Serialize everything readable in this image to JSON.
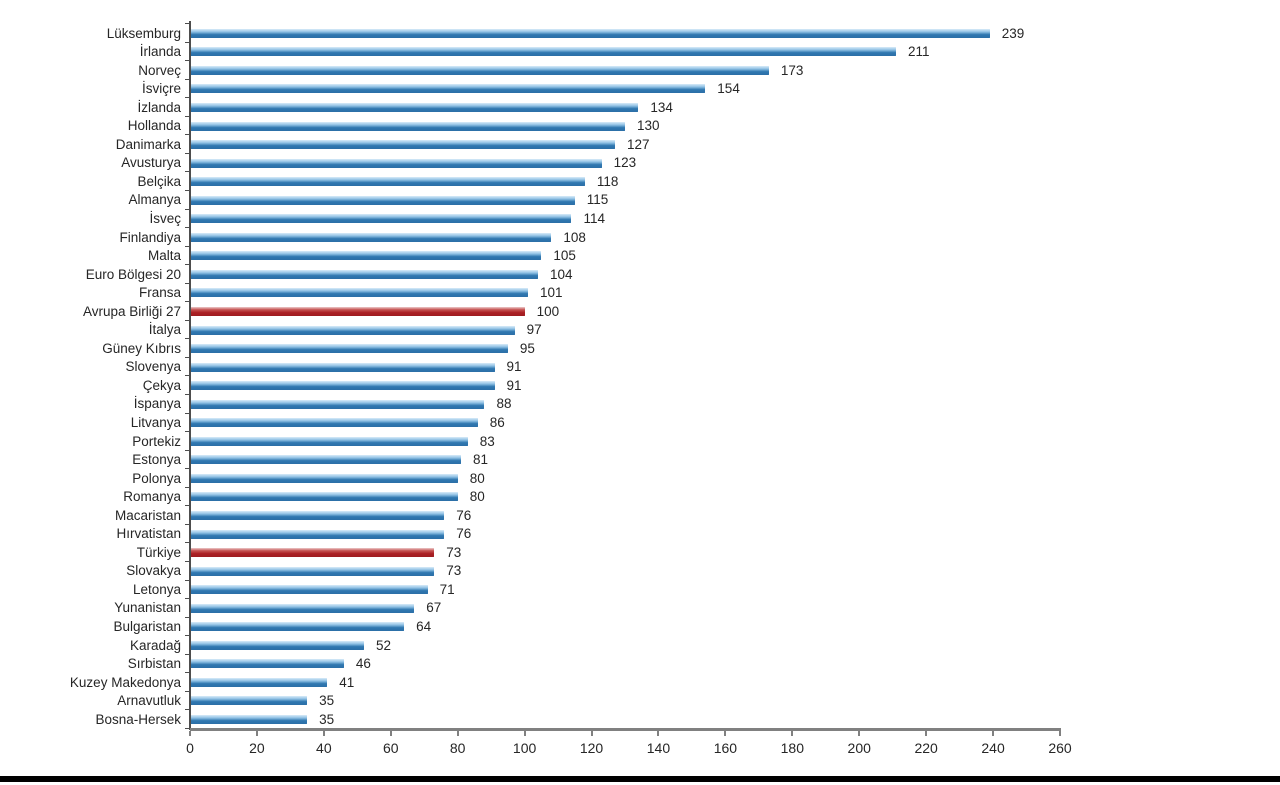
{
  "page": {
    "background_color": "#ffffff",
    "footer_divider_color": "#000000"
  },
  "chart_data": {
    "type": "bar",
    "orientation": "horizontal",
    "title": "",
    "xlabel": "",
    "ylabel": "",
    "xlim": [
      0,
      260
    ],
    "x_ticks": [
      0,
      20,
      40,
      60,
      80,
      100,
      120,
      140,
      160,
      180,
      200,
      220,
      240,
      260
    ],
    "grid": false,
    "legend": false,
    "value_labels_shown": true,
    "bar_color": "#2e74ae",
    "highlight_color": "#a81e22",
    "highlighted_categories": [
      "Avrupa Birliği 27",
      "Türkiye"
    ],
    "categories": [
      "Lüksemburg",
      "İrlanda",
      "Norveç",
      "İsviçre",
      "İzlanda",
      "Hollanda",
      "Danimarka",
      "Avusturya",
      "Belçika",
      "Almanya",
      "İsveç",
      "Finlandiya",
      "Malta",
      "Euro Bölgesi 20",
      "Fransa",
      "Avrupa Birliği 27",
      "İtalya",
      "Güney Kıbrıs",
      "Slovenya",
      "Çekya",
      "İspanya",
      "Litvanya",
      "Portekiz",
      "Estonya",
      "Polonya",
      "Romanya",
      "Macaristan",
      "Hırvatistan",
      "Türkiye",
      "Slovakya",
      "Letonya",
      "Yunanistan",
      "Bulgaristan",
      "Karadağ",
      "Sırbistan",
      "Kuzey Makedonya",
      "Arnavutluk",
      "Bosna-Hersek"
    ],
    "values": [
      239,
      211,
      173,
      154,
      134,
      130,
      127,
      123,
      118,
      115,
      114,
      108,
      105,
      104,
      101,
      100,
      97,
      95,
      91,
      91,
      88,
      86,
      83,
      81,
      80,
      80,
      76,
      76,
      73,
      73,
      71,
      67,
      64,
      52,
      46,
      41,
      35,
      35
    ]
  }
}
